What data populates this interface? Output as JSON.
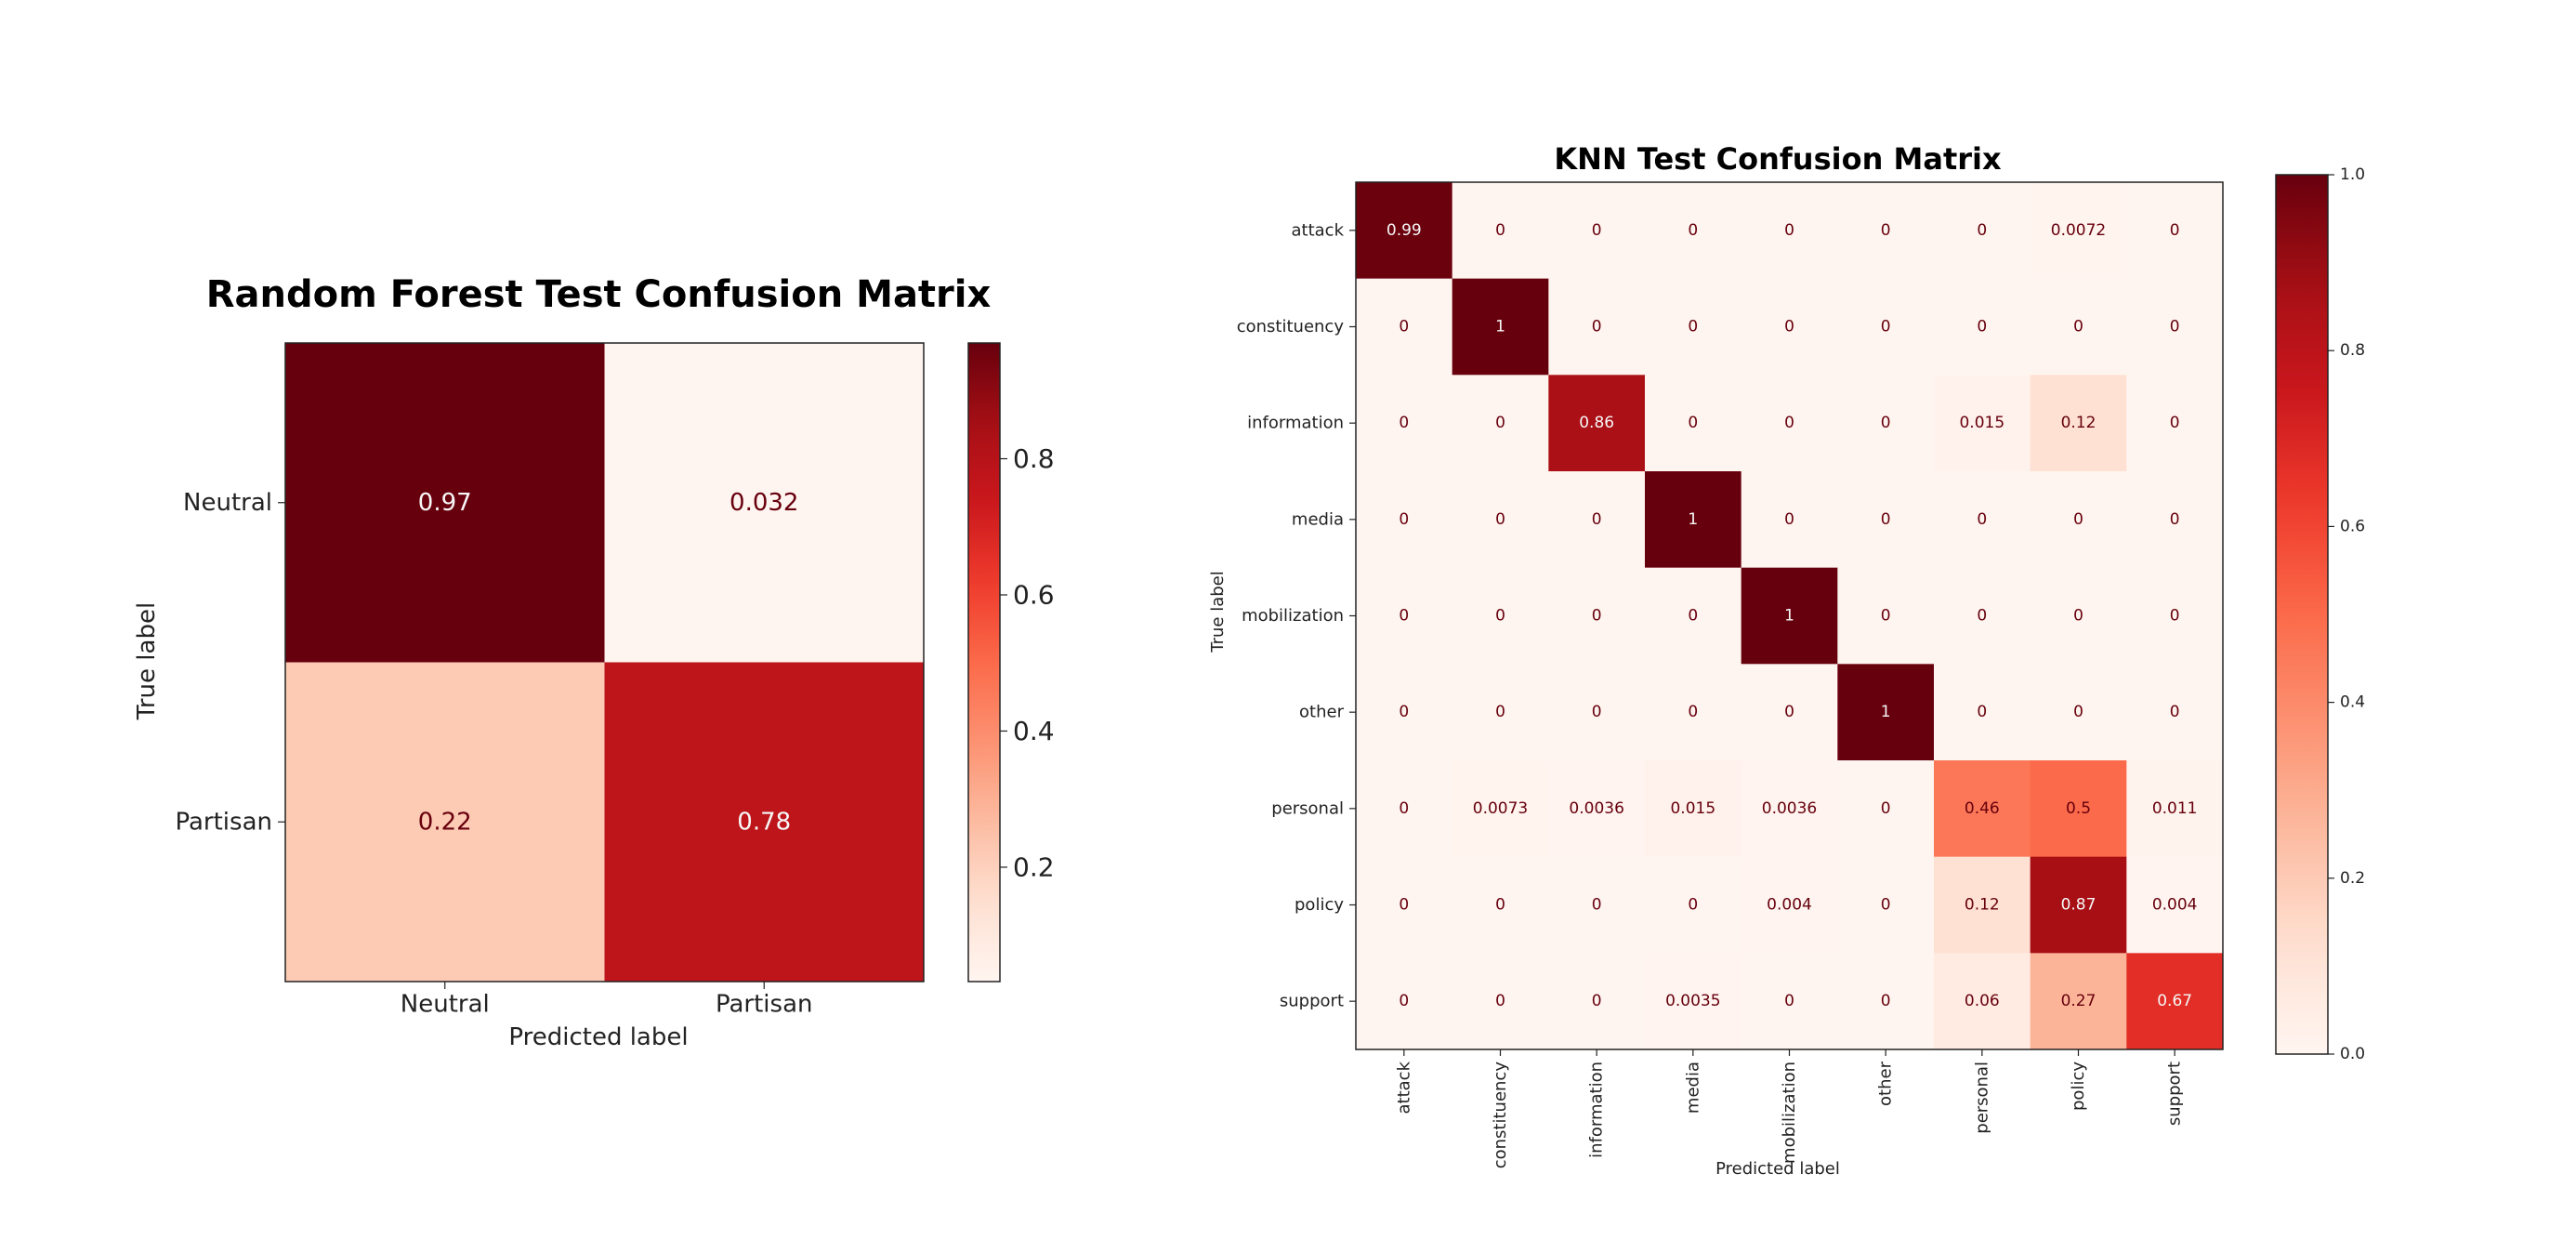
{
  "chart_data": [
    {
      "type": "heatmap",
      "title": "Random Forest Test Confusion Matrix",
      "xlabel": "Predicted label",
      "ylabel": "True label",
      "x_categories": [
        "Neutral",
        "Partisan"
      ],
      "y_categories": [
        "Neutral",
        "Partisan"
      ],
      "values": [
        [
          0.97,
          0.032
        ],
        [
          0.22,
          0.78
        ]
      ],
      "cell_labels": [
        [
          "0.97",
          "0.032"
        ],
        [
          "0.22",
          "0.78"
        ]
      ],
      "colormap": "Reds",
      "color_range": [
        0.032,
        0.97
      ],
      "colorbar_ticks": [
        "0.2",
        "0.4",
        "0.6",
        "0.8"
      ],
      "colorbar_tick_values": [
        0.2,
        0.4,
        0.6,
        0.8
      ],
      "grid": false
    },
    {
      "type": "heatmap",
      "title": "KNN Test Confusion Matrix",
      "xlabel": "Predicted label",
      "ylabel": "True label",
      "x_categories": [
        "attack",
        "constituency",
        "information",
        "media",
        "mobilization",
        "other",
        "personal",
        "policy",
        "support"
      ],
      "y_categories": [
        "attack",
        "constituency",
        "information",
        "media",
        "mobilization",
        "other",
        "personal",
        "policy",
        "support"
      ],
      "values": [
        [
          0.99,
          0,
          0,
          0,
          0,
          0,
          0,
          0.0072,
          0
        ],
        [
          0,
          1,
          0,
          0,
          0,
          0,
          0,
          0,
          0
        ],
        [
          0,
          0,
          0.86,
          0,
          0,
          0,
          0.015,
          0.12,
          0
        ],
        [
          0,
          0,
          0,
          1,
          0,
          0,
          0,
          0,
          0
        ],
        [
          0,
          0,
          0,
          0,
          1,
          0,
          0,
          0,
          0
        ],
        [
          0,
          0,
          0,
          0,
          0,
          1,
          0,
          0,
          0
        ],
        [
          0,
          0.0073,
          0.0036,
          0.015,
          0.0036,
          0,
          0.46,
          0.5,
          0.011
        ],
        [
          0,
          0,
          0,
          0,
          0.004,
          0,
          0.12,
          0.87,
          0.004
        ],
        [
          0,
          0,
          0,
          0.0035,
          0,
          0,
          0.06,
          0.27,
          0.67
        ]
      ],
      "cell_labels": [
        [
          "0.99",
          "0",
          "0",
          "0",
          "0",
          "0",
          "0",
          "0.0072",
          "0"
        ],
        [
          "0",
          "1",
          "0",
          "0",
          "0",
          "0",
          "0",
          "0",
          "0"
        ],
        [
          "0",
          "0",
          "0.86",
          "0",
          "0",
          "0",
          "0.015",
          "0.12",
          "0"
        ],
        [
          "0",
          "0",
          "0",
          "1",
          "0",
          "0",
          "0",
          "0",
          "0"
        ],
        [
          "0",
          "0",
          "0",
          "0",
          "1",
          "0",
          "0",
          "0",
          "0"
        ],
        [
          "0",
          "0",
          "0",
          "0",
          "0",
          "1",
          "0",
          "0",
          "0"
        ],
        [
          "0",
          "0.0073",
          "0.0036",
          "0.015",
          "0.0036",
          "0",
          "0.46",
          "0.5",
          "0.011"
        ],
        [
          "0",
          "0",
          "0",
          "0",
          "0.004",
          "0",
          "0.12",
          "0.87",
          "0.004"
        ],
        [
          "0",
          "0",
          "0",
          "0.0035",
          "0",
          "0",
          "0.06",
          "0.27",
          "0.67"
        ]
      ],
      "colormap": "Reds",
      "color_range": [
        0,
        1
      ],
      "colorbar_ticks": [
        "0.0",
        "0.2",
        "0.4",
        "0.6",
        "0.8",
        "1.0"
      ],
      "colorbar_tick_values": [
        0,
        0.2,
        0.4,
        0.6,
        0.8,
        1.0
      ],
      "grid": false
    }
  ]
}
